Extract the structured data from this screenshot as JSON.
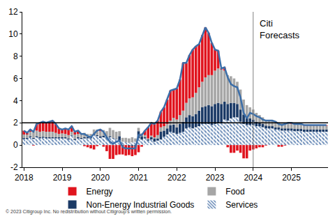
{
  "chart_data": {
    "type": "bar",
    "stacked": true,
    "grid": false,
    "legend": "bottom",
    "categories": [
      "2018",
      null,
      null,
      null,
      null,
      null,
      null,
      null,
      null,
      null,
      null,
      null,
      "2019",
      null,
      null,
      null,
      null,
      null,
      null,
      null,
      null,
      null,
      null,
      null,
      "2020",
      null,
      null,
      null,
      null,
      null,
      null,
      null,
      null,
      null,
      null,
      null,
      "2021",
      null,
      null,
      null,
      null,
      null,
      null,
      null,
      null,
      null,
      null,
      null,
      "2022",
      null,
      null,
      null,
      null,
      null,
      null,
      null,
      null,
      null,
      null,
      null,
      "2023",
      null,
      null,
      null,
      null,
      null,
      null,
      null,
      null,
      null,
      null,
      null,
      "2024",
      null,
      null,
      null,
      null,
      null,
      null,
      null,
      null,
      null,
      null,
      null,
      "2025",
      null,
      null,
      null,
      null,
      null,
      null,
      null,
      null,
      null,
      null,
      null
    ],
    "ylim": [
      -2,
      12
    ],
    "yticks": [
      -2,
      0,
      2,
      4,
      6,
      8,
      10,
      12
    ],
    "reference_line": 2,
    "forecast_start": "2024",
    "annotation": "Citi Forecasts",
    "footnote": "© 2023 Citigroup Inc. No redistribution without Citigroup's written permission.",
    "series": [
      {
        "name": "Energy",
        "color": "#e0141e",
        "values": [
          0.35,
          0.15,
          0.2,
          -0.05,
          0.6,
          0.8,
          0.85,
          0.8,
          0.9,
          1.0,
          0.8,
          0.5,
          0.35,
          0.5,
          0.5,
          0.5,
          0.25,
          0.3,
          0.05,
          -0.1,
          -0.2,
          -0.3,
          -0.4,
          -0.1,
          0.15,
          -0.15,
          -0.55,
          -1.25,
          -1.25,
          -0.9,
          -0.85,
          -0.8,
          -0.95,
          -0.85,
          -0.9,
          -0.8,
          -0.65,
          -0.15,
          0.4,
          1.0,
          1.15,
          1.2,
          1.3,
          1.4,
          1.7,
          2.2,
          2.7,
          2.55,
          2.8,
          3.2,
          4.3,
          3.6,
          3.9,
          4.3,
          4.2,
          3.9,
          4.2,
          4.5,
          3.8,
          2.9,
          1.9,
          1.6,
          0.1,
          0.3,
          -0.2,
          -0.7,
          -0.7,
          -0.5,
          -0.7,
          -1.2,
          -1.2,
          -0.5,
          -0.4,
          -0.3,
          -0.2,
          -0.2,
          -0.05,
          0,
          0,
          0.05,
          -0.15,
          -0.15,
          -0.05,
          0.05,
          0.1,
          0.05,
          0.05,
          0.05,
          0.05,
          0.05,
          0.05,
          0.05,
          0.05,
          0.05,
          0.05,
          0.05
        ]
      },
      {
        "name": "Food",
        "color": "#a6a6a6",
        "values": [
          0.3,
          0.3,
          0.4,
          0.6,
          0.5,
          0.5,
          0.5,
          0.5,
          0.5,
          0.5,
          0.4,
          0.3,
          0.35,
          0.3,
          0.3,
          0.3,
          0.4,
          0.3,
          0.3,
          0.4,
          0.3,
          0.3,
          0.4,
          0.5,
          0.45,
          0.5,
          0.55,
          0.75,
          0.7,
          0.65,
          0.45,
          0.35,
          0.4,
          0.4,
          0.45,
          0.3,
          0.3,
          0.25,
          0.2,
          0.1,
          0.15,
          0.1,
          0.3,
          0.4,
          0.4,
          0.4,
          0.4,
          0.6,
          0.7,
          0.8,
          1.0,
          1.3,
          1.5,
          1.7,
          1.9,
          2.1,
          2.3,
          2.6,
          2.7,
          2.8,
          3.0,
          3.1,
          3.1,
          2.8,
          2.6,
          2.4,
          2.2,
          2.0,
          1.8,
          1.35,
          1.1,
          1.0,
          0.9,
          0.8,
          0.7,
          0.6,
          0.5,
          0.5,
          0.5,
          0.45,
          0.45,
          0.45,
          0.45,
          0.45,
          0.4,
          0.4,
          0.4,
          0.4,
          0.35,
          0.35,
          0.35,
          0.35,
          0.35,
          0.35,
          0.35,
          0.35
        ]
      },
      {
        "name": "Non-Energy Industrial Goods",
        "color": "#1b3a66",
        "values": [
          0.1,
          0.1,
          0.1,
          0.1,
          0.1,
          0.1,
          0.1,
          0.1,
          0.1,
          0.1,
          0.1,
          0.1,
          0.1,
          0.1,
          0.1,
          0.05,
          0.1,
          0.1,
          0.1,
          0.1,
          0.1,
          0.1,
          0.1,
          0.1,
          0.15,
          0.15,
          0.1,
          0.1,
          0.05,
          0.05,
          0.4,
          -0.05,
          0.0,
          -0.05,
          -0.1,
          -0.1,
          0.65,
          0.3,
          0.1,
          0.1,
          0.2,
          0.3,
          0.2,
          0.7,
          0.55,
          0.55,
          0.6,
          0.75,
          0.6,
          0.8,
          0.9,
          1.0,
          1.1,
          1.1,
          1.2,
          1.4,
          1.5,
          1.6,
          1.7,
          1.7,
          1.8,
          1.8,
          1.7,
          1.6,
          1.5,
          1.4,
          1.3,
          1.2,
          1.1,
          0.85,
          0.7,
          0.6,
          0.5,
          0.4,
          0.3,
          0.3,
          0.25,
          0.2,
          0.2,
          0.2,
          0.2,
          0.2,
          0.2,
          0.2,
          0.2,
          0.2,
          0.2,
          0.2,
          0.2,
          0.2,
          0.2,
          0.2,
          0.2,
          0.2,
          0.2,
          0.2
        ]
      },
      {
        "name": "Services",
        "color": "#5a7fb0",
        "marker": "hatch",
        "values": [
          0.55,
          0.55,
          0.7,
          0.55,
          0.7,
          0.6,
          0.65,
          0.6,
          0.6,
          0.6,
          0.6,
          0.6,
          0.6,
          0.6,
          0.5,
          0.85,
          0.45,
          0.6,
          0.55,
          0.6,
          0.6,
          0.6,
          0.9,
          0.8,
          0.65,
          0.7,
          0.6,
          0.7,
          0.6,
          0.5,
          0.4,
          0.3,
          0.25,
          0.2,
          0.25,
          0.3,
          0.6,
          0.5,
          0.6,
          0.4,
          0.5,
          0.3,
          0.4,
          0.5,
          0.75,
          0.95,
          1.2,
          1.1,
          1.0,
          1.1,
          1.2,
          1.5,
          1.6,
          1.5,
          1.6,
          1.7,
          1.9,
          1.9,
          1.9,
          1.8,
          1.9,
          2.0,
          2.0,
          2.3,
          2.2,
          2.4,
          2.5,
          2.5,
          2.1,
          1.9,
          1.8,
          1.8,
          1.8,
          1.7,
          1.7,
          1.6,
          1.5,
          1.5,
          1.5,
          1.4,
          1.4,
          1.3,
          1.3,
          1.3,
          1.3,
          1.25,
          1.25,
          1.25,
          1.2,
          1.2,
          1.2,
          1.2,
          1.2,
          1.2,
          1.2,
          1.2
        ]
      },
      {
        "type": "line",
        "color": "#3c6ea8",
        "values": [
          1.3,
          1.1,
          1.4,
          1.2,
          1.9,
          2.0,
          2.1,
          2.0,
          2.1,
          2.2,
          1.9,
          1.5,
          1.4,
          1.5,
          1.4,
          1.7,
          1.2,
          1.3,
          1.0,
          1.0,
          0.8,
          0.7,
          1.0,
          1.3,
          1.4,
          1.2,
          0.7,
          0.3,
          0.1,
          0.3,
          0.4,
          -0.2,
          -0.3,
          -0.3,
          -0.3,
          -0.3,
          0.9,
          0.9,
          1.3,
          1.6,
          2.0,
          1.9,
          2.2,
          3.0,
          3.4,
          4.1,
          4.9,
          5.0,
          5.1,
          5.9,
          7.4,
          7.4,
          8.1,
          8.6,
          8.9,
          9.1,
          9.9,
          10.6,
          10.1,
          9.2,
          8.6,
          8.5,
          6.9,
          7.0,
          6.1,
          5.5,
          5.3,
          5.2,
          4.3,
          2.9,
          2.4,
          2.9,
          2.8,
          2.6,
          2.5,
          2.3,
          2.2,
          2.2,
          2.2,
          2.1,
          1.9,
          1.8,
          1.9,
          2.0,
          2.0,
          1.9,
          1.9,
          1.9,
          1.8,
          1.8,
          1.8,
          1.8,
          1.8,
          1.8,
          1.8,
          1.8
        ]
      }
    ]
  }
}
